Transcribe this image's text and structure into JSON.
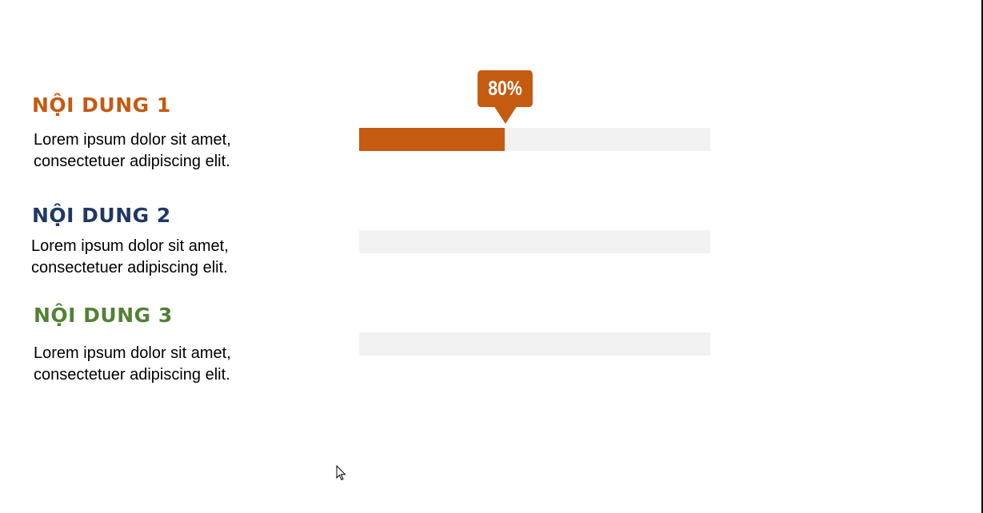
{
  "colors": {
    "item1": "#c55a11",
    "item2": "#1f3864",
    "item3": "#538135",
    "track": "#f2f2f2"
  },
  "items": [
    {
      "title": "NỘI DUNG 1",
      "line1": "Lorem ipsum dolor sit amet,",
      "line2": "consectetuer adipiscing elit.",
      "progress_fraction": 0.415,
      "label": "80%"
    },
    {
      "title": "NỘI DUNG 2",
      "line1": "Lorem ipsum dolor sit amet,",
      "line2": "consectetuer adipiscing elit.",
      "progress_fraction": 0
    },
    {
      "title": "NỘI DUNG 3",
      "line1": "Lorem ipsum dolor sit amet,",
      "line2": "consectetuer adipiscing elit.",
      "progress_fraction": 0
    }
  ],
  "cursor_icon": "mouse-pointer-icon"
}
